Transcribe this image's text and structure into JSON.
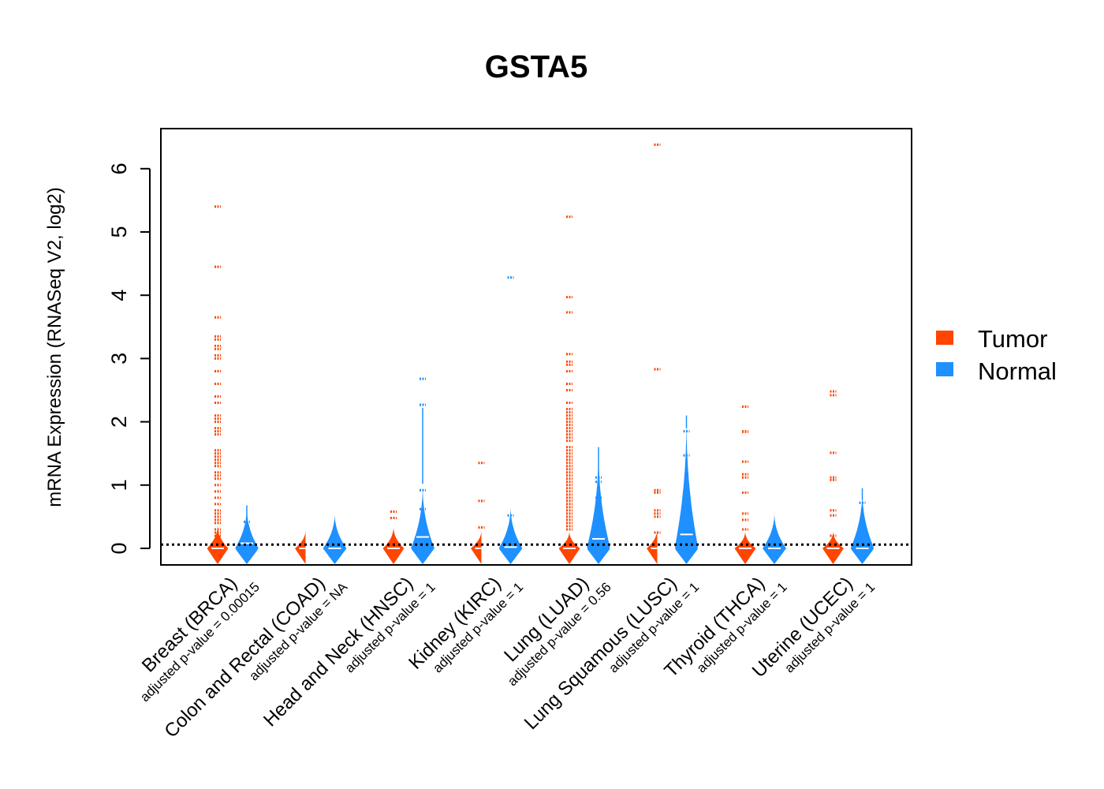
{
  "chart_data": {
    "type": "violin",
    "title": "GSTA5",
    "ylabel": "mRNA Expression (RNASeq V2, log2)",
    "ylim": [
      -0.25,
      6.6
    ],
    "yticks": [
      "0",
      "1",
      "2",
      "3",
      "4",
      "5",
      "6"
    ],
    "reference_line": 0.06,
    "legend": {
      "position": "right",
      "entries": [
        {
          "name": "Tumor",
          "color": "#FF4500"
        },
        {
          "name": "Normal",
          "color": "#1E90FF"
        }
      ]
    },
    "categories": [
      {
        "label": "Breast (BRCA)",
        "pvalue": "adjusted p-value = 0.00015",
        "tumor": {
          "top": 0.38,
          "half_width": 0.45,
          "median": 0.0,
          "outliers": [
            5.4,
            4.45,
            3.65,
            3.35,
            3.3,
            3.2,
            3.15,
            3.05,
            3.0,
            2.8,
            2.6,
            2.4,
            2.3,
            2.1,
            2.05,
            2.0,
            1.9,
            1.85,
            1.8,
            1.55,
            1.5,
            1.45,
            1.4,
            1.35,
            1.3,
            1.2,
            1.15,
            1.1,
            1.0,
            0.9,
            0.8,
            0.7,
            0.6,
            0.55,
            0.5,
            0.45,
            0.4,
            0.3,
            0.25,
            0.2,
            0.15,
            0.1
          ]
        },
        "normal": {
          "top": 0.68,
          "half_width": 0.5,
          "median": 0.08,
          "outliers": [
            0.42
          ]
        }
      },
      {
        "label": "Colon and Rectal (COAD)",
        "pvalue": "adjusted p-value = NA",
        "tumor": {
          "top": 0.3,
          "half_width": 0.45,
          "median": 0.0,
          "outliers": []
        },
        "normal": {
          "top": 0.57,
          "half_width": 0.5,
          "median": 0.0,
          "outliers": []
        }
      },
      {
        "label": "Head and Neck (HNSC)",
        "pvalue": "adjusted p-value = 1",
        "tumor": {
          "top": 0.35,
          "half_width": 0.45,
          "median": 0.0,
          "outliers": [
            0.58,
            0.48
          ]
        },
        "normal": {
          "top": 1.02,
          "half_width": 0.5,
          "median": 0.18,
          "outliers": [
            2.68,
            2.27,
            0.92,
            0.62
          ]
        }
      },
      {
        "label": "Kidney (KIRC)",
        "pvalue": "adjusted p-value = 1",
        "tumor": {
          "top": 0.3,
          "half_width": 0.45,
          "median": 0.0,
          "outliers": [
            1.35,
            0.75,
            0.33
          ]
        },
        "normal": {
          "top": 0.68,
          "half_width": 0.5,
          "median": 0.02,
          "outliers": [
            4.28,
            0.52
          ]
        }
      },
      {
        "label": "Lung (LUAD)",
        "pvalue": "adjusted p-value = 0.56",
        "tumor": {
          "top": 0.28,
          "half_width": 0.45,
          "median": 0.0,
          "outliers": [
            5.24,
            3.97,
            3.73,
            3.07,
            2.95,
            2.9,
            2.8,
            2.6,
            2.5,
            2.3,
            2.2,
            2.15,
            2.1,
            2.05,
            2.0,
            1.95,
            1.9,
            1.85,
            1.8,
            1.75,
            1.7,
            1.6,
            1.55,
            1.5,
            1.45,
            1.4,
            1.35,
            1.3,
            1.25,
            1.2,
            1.15,
            1.1,
            1.05,
            1.0,
            0.95,
            0.9,
            0.85,
            0.8,
            0.75,
            0.7,
            0.65,
            0.6,
            0.55,
            0.5,
            0.45,
            0.4,
            0.35,
            0.3
          ]
        },
        "normal": {
          "top": 1.6,
          "half_width": 0.5,
          "median": 0.15,
          "outliers": [
            1.12,
            1.05,
            0.8,
            0.68
          ]
        }
      },
      {
        "label": "Lung Squamous (LUSC)",
        "pvalue": "adjusted p-value = 1",
        "tumor": {
          "top": 0.32,
          "half_width": 0.45,
          "median": 0.0,
          "outliers": [
            6.38,
            2.83,
            0.92,
            0.88,
            0.6,
            0.55,
            0.5,
            0.25
          ]
        },
        "normal": {
          "top": 2.1,
          "half_width": 0.5,
          "median": 0.22,
          "outliers": [
            1.85,
            1.47,
            0.62
          ]
        }
      },
      {
        "label": "Thyroid (THCA)",
        "pvalue": "adjusted p-value = 1",
        "tumor": {
          "top": 0.28,
          "half_width": 0.45,
          "median": 0.0,
          "outliers": [
            2.24,
            1.85,
            1.84,
            1.37,
            1.17,
            1.12,
            0.88,
            0.55,
            0.45,
            0.3
          ]
        },
        "normal": {
          "top": 0.58,
          "half_width": 0.5,
          "median": 0.0,
          "outliers": []
        }
      },
      {
        "label": "Uterine (UCEC)",
        "pvalue": "adjusted p-value = 1",
        "tumor": {
          "top": 0.28,
          "half_width": 0.45,
          "median": 0.0,
          "outliers": [
            2.48,
            2.42,
            1.51,
            1.12,
            1.08,
            0.6,
            0.52,
            0.2
          ]
        },
        "normal": {
          "top": 0.95,
          "half_width": 0.5,
          "median": 0.0,
          "outliers": [
            0.72
          ]
        }
      }
    ]
  }
}
